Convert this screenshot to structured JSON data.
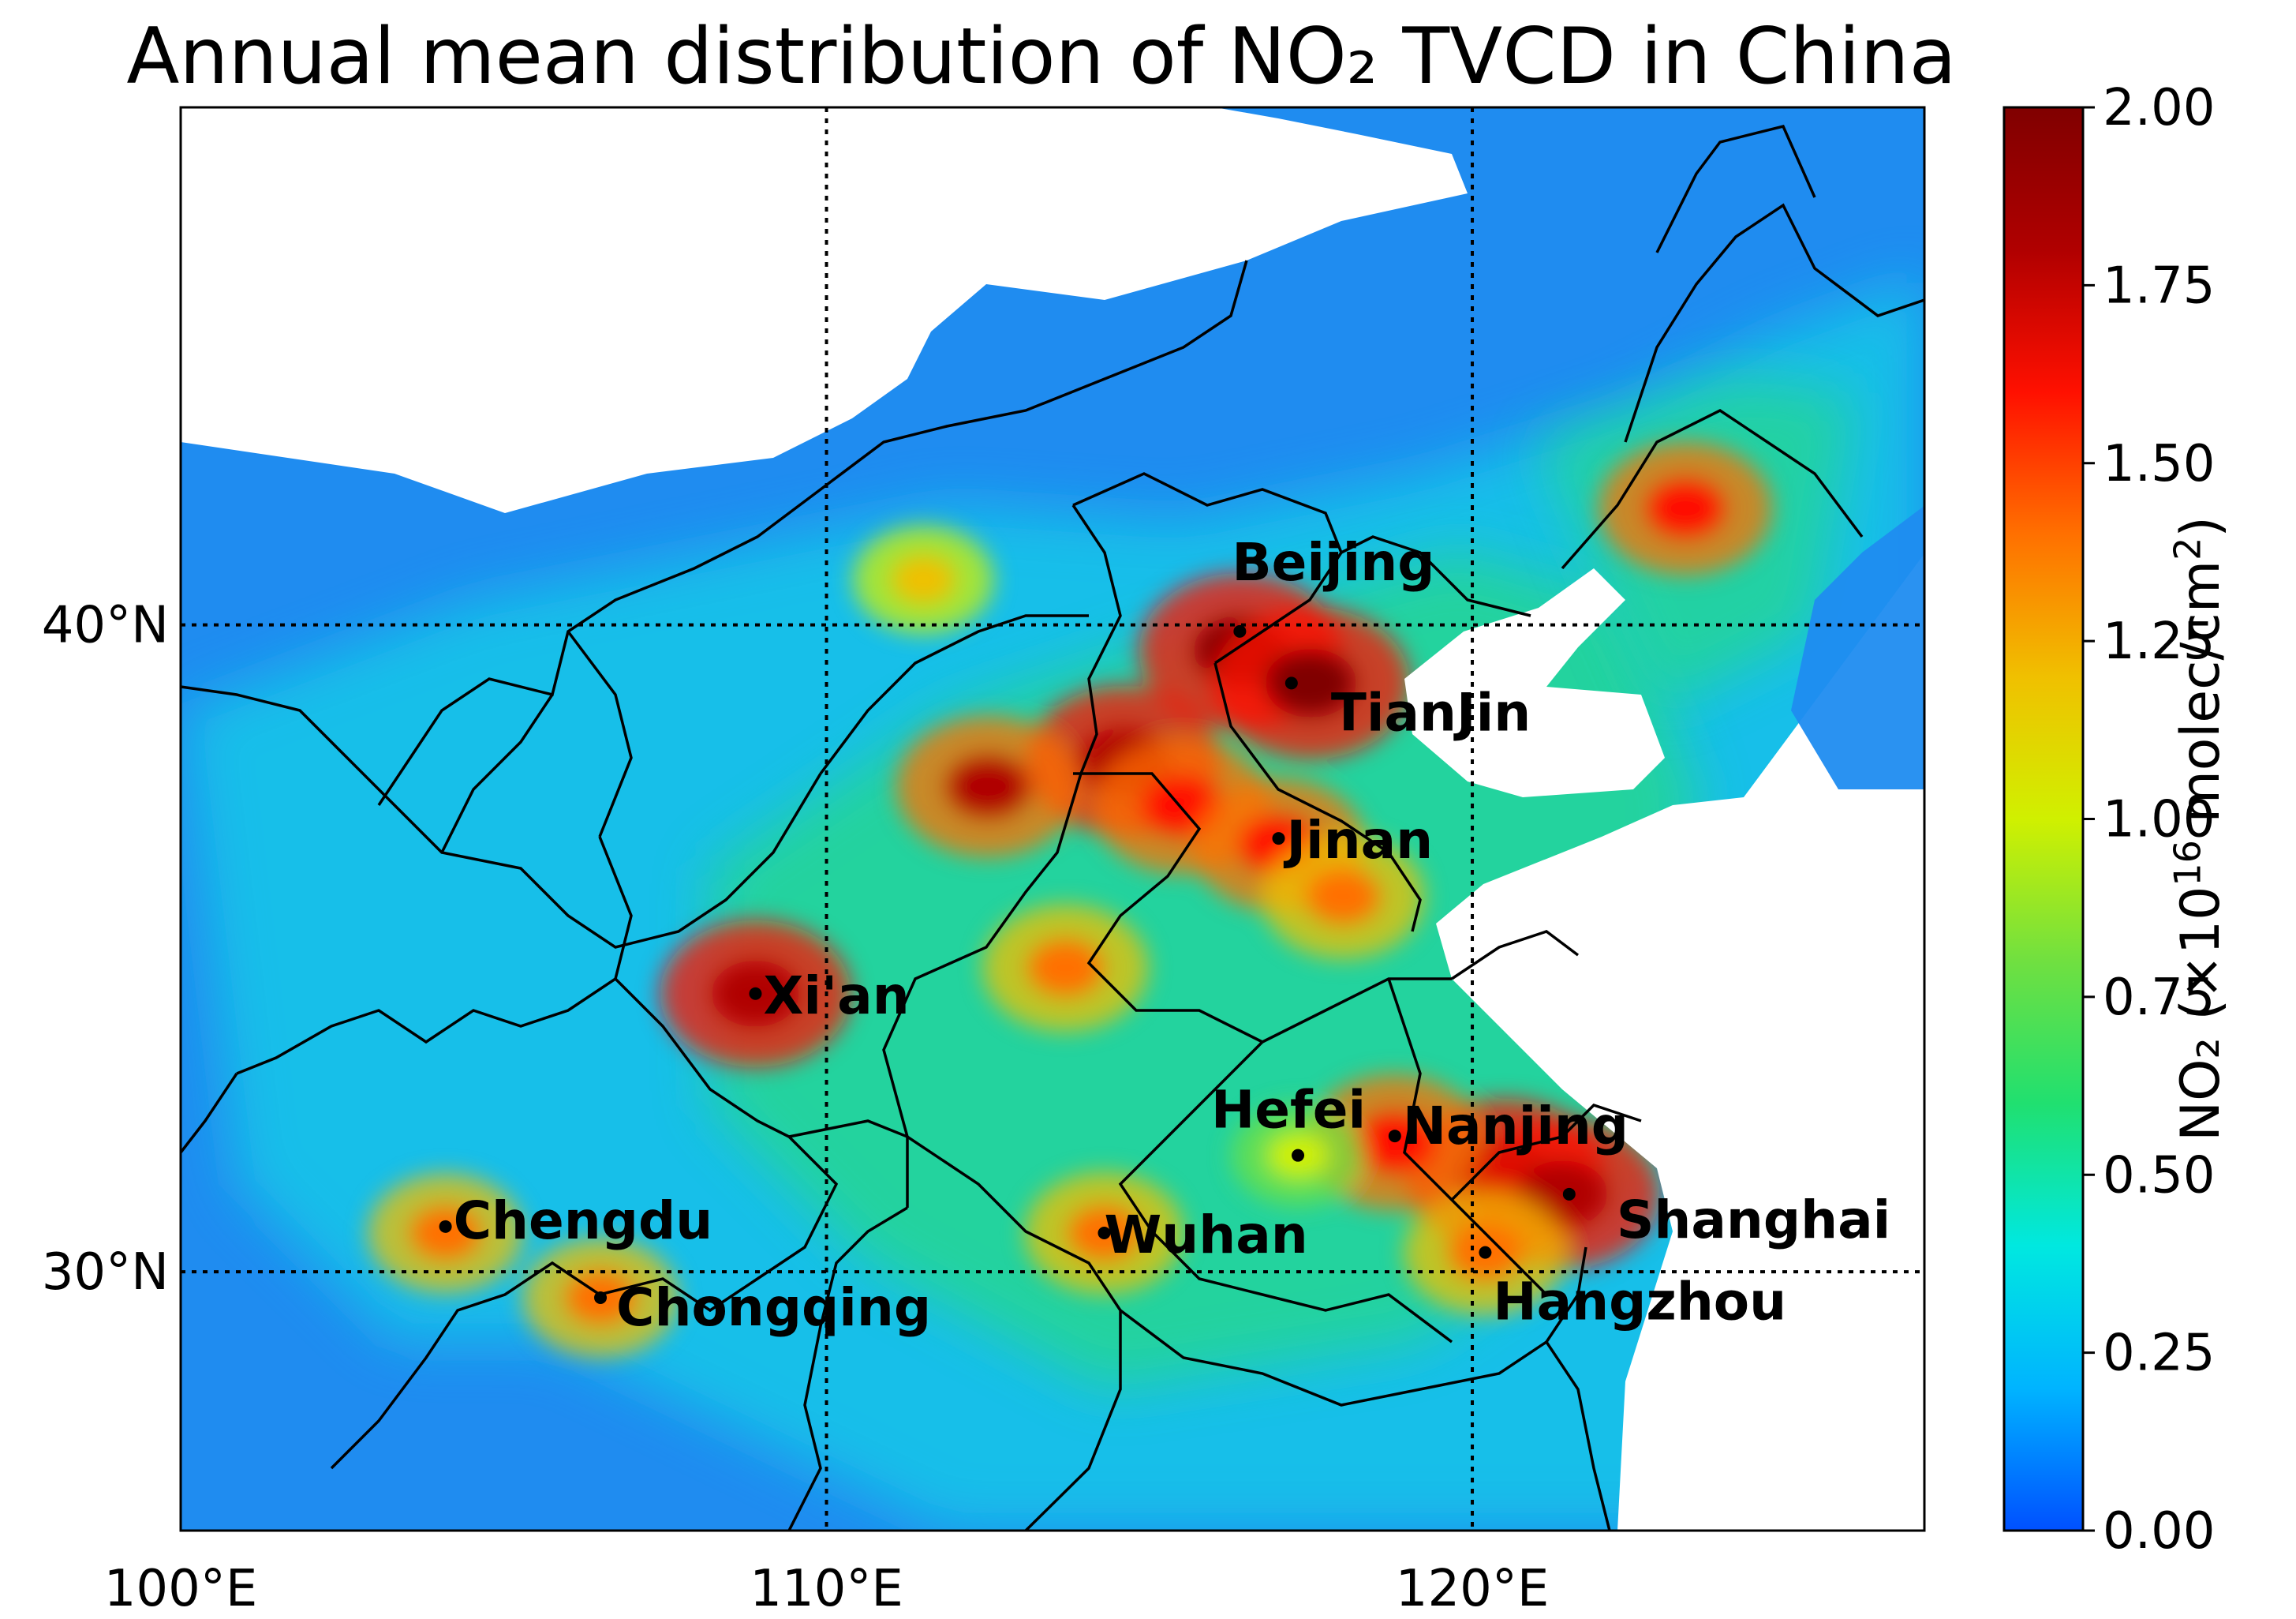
{
  "title": "Annual mean distribution of NO₂ TVCD in China",
  "map": {
    "lon_range": [
      100,
      127
    ],
    "lat_range": [
      26,
      48
    ],
    "gridlines": "dotted",
    "lon_ticks": [
      100,
      110,
      120
    ],
    "lon_tick_labels": [
      "100°E",
      "110°E",
      "120°E"
    ],
    "lat_ticks": [
      30,
      40
    ],
    "lat_tick_labels": [
      "30°N",
      "40°N"
    ],
    "sea_color": "#ffffff",
    "border_color": "#000000",
    "cities": [
      {
        "name": "Beijing",
        "lon": 116.4,
        "lat": 39.9
      },
      {
        "name": "TianJin",
        "lon": 117.2,
        "lat": 39.1
      },
      {
        "name": "Jinan",
        "lon": 117.0,
        "lat": 36.7
      },
      {
        "name": "Xi'an",
        "lon": 108.9,
        "lat": 34.3
      },
      {
        "name": "Hefei",
        "lon": 117.3,
        "lat": 31.8
      },
      {
        "name": "Nanjing",
        "lon": 118.8,
        "lat": 32.1
      },
      {
        "name": "Shanghai",
        "lon": 121.5,
        "lat": 31.2
      },
      {
        "name": "Wuhan",
        "lon": 114.3,
        "lat": 30.6
      },
      {
        "name": "Chengdu",
        "lon": 104.1,
        "lat": 30.7
      },
      {
        "name": "Chongqing",
        "lon": 106.5,
        "lat": 29.6
      },
      {
        "name": "Hangzhou",
        "lon": 120.2,
        "lat": 30.3
      }
    ]
  },
  "colorbar": {
    "min": 0.0,
    "max": 2.0,
    "ticks": [
      "0.00",
      "0.25",
      "0.50",
      "0.75",
      "1.00",
      "1.25",
      "1.50",
      "1.75",
      "2.00"
    ],
    "label_prefix": "NO₂ (×10",
    "label_exponent": "16",
    "label_suffix": " molec/cm",
    "label_suffix_exponent": "2",
    "label_close": ")",
    "colormap": "jet",
    "stops": [
      "#0050ff",
      "#00b4ff",
      "#00e8e0",
      "#20e070",
      "#70e040",
      "#d0f000",
      "#f0c000",
      "#ff7000",
      "#ff1000",
      "#b00000",
      "#800000"
    ]
  },
  "hotspots": [
    {
      "lon": 116.4,
      "lat": 39.6,
      "value": 1.95
    },
    {
      "lon": 117.5,
      "lat": 39.1,
      "value": 1.9
    },
    {
      "lon": 114.6,
      "lat": 37.9,
      "value": 1.85
    },
    {
      "lon": 115.5,
      "lat": 37.2,
      "value": 1.6
    },
    {
      "lon": 117.0,
      "lat": 36.6,
      "value": 1.55
    },
    {
      "lon": 118.0,
      "lat": 35.8,
      "value": 1.4
    },
    {
      "lon": 112.5,
      "lat": 37.5,
      "value": 1.7
    },
    {
      "lon": 113.7,
      "lat": 34.7,
      "value": 1.45
    },
    {
      "lon": 108.9,
      "lat": 34.3,
      "value": 1.8
    },
    {
      "lon": 120.5,
      "lat": 31.5,
      "value": 1.9
    },
    {
      "lon": 121.4,
      "lat": 31.2,
      "value": 1.85
    },
    {
      "lon": 118.8,
      "lat": 32.0,
      "value": 1.6
    },
    {
      "lon": 123.3,
      "lat": 41.8,
      "value": 1.55
    },
    {
      "lon": 114.3,
      "lat": 30.6,
      "value": 1.35
    },
    {
      "lon": 104.1,
      "lat": 30.6,
      "value": 1.3
    },
    {
      "lon": 106.5,
      "lat": 29.6,
      "value": 1.3
    },
    {
      "lon": 120.2,
      "lat": 30.3,
      "value": 1.4
    },
    {
      "lon": 111.5,
      "lat": 40.7,
      "value": 1.1
    },
    {
      "lon": 117.3,
      "lat": 31.8,
      "value": 1.0
    }
  ]
}
